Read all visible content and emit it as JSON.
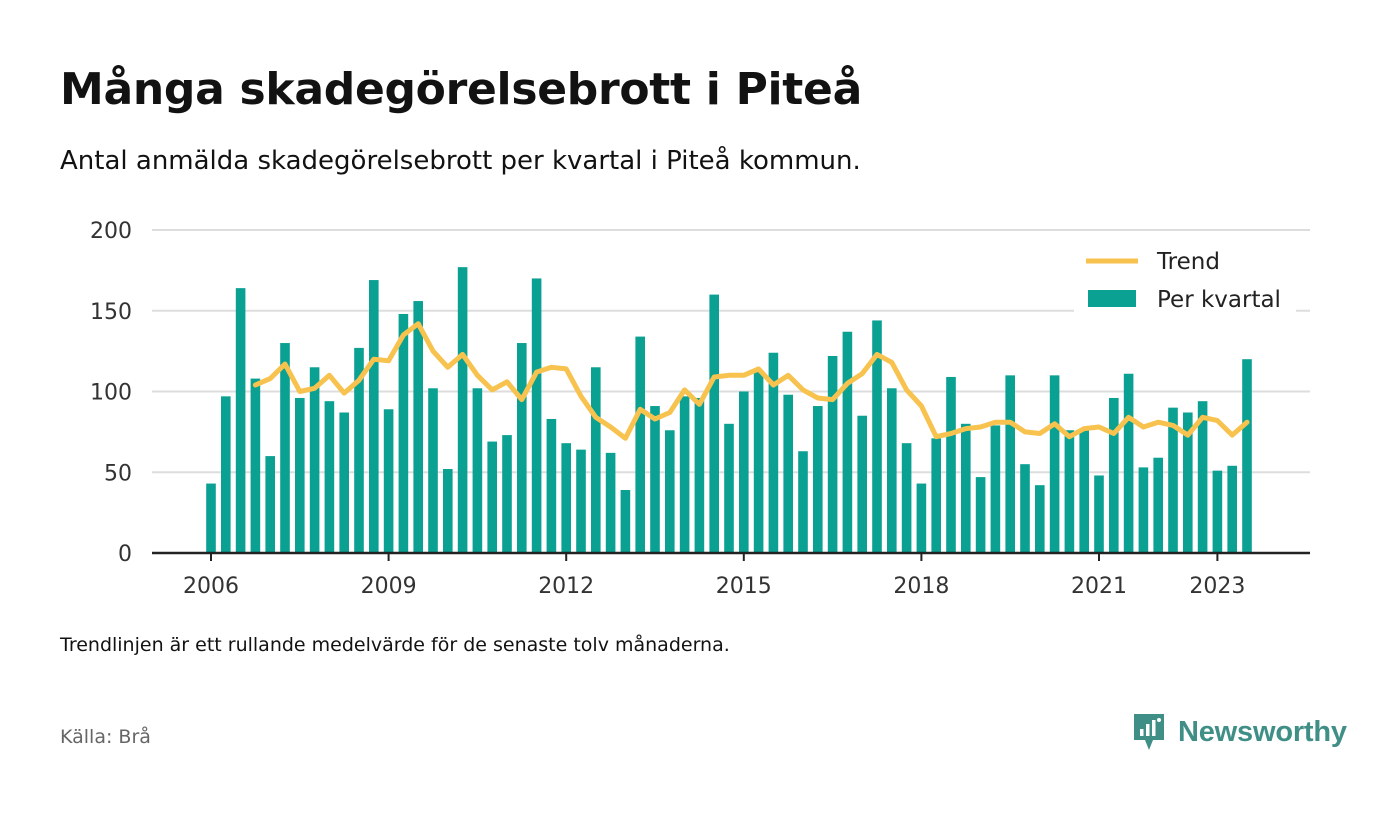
{
  "title": "Många skadegörelsebrott i Piteå",
  "subtitle": "Antal anmälda skadegörelsebrott per kvartal i Piteå kommun.",
  "note": "Trendlinjen är ett rullande medelvärde för de senaste tolv månaderna.",
  "source": "Källa: Brå",
  "brand": {
    "name": "Newsworthy",
    "icon": "newsworthy-logo-icon",
    "color": "#3f8f86"
  },
  "chart_data": {
    "type": "bar",
    "colors": {
      "bar": "#0aa092",
      "trend": "#f7c24e",
      "grid": "#dddddd",
      "axis": "#222222"
    },
    "ylim": [
      0,
      200
    ],
    "yticks": [
      0,
      50,
      100,
      150,
      200
    ],
    "xticks": [
      "2006",
      "2009",
      "2012",
      "2015",
      "2018",
      "2021",
      "2023"
    ],
    "grid": true,
    "legend": {
      "position": "top-right",
      "trend_label": "Trend",
      "bar_label": "Per kvartal"
    },
    "series": [
      {
        "name": "Per kvartal",
        "type": "bar",
        "values": [
          43,
          97,
          164,
          108,
          60,
          130,
          96,
          115,
          94,
          87,
          127,
          169,
          89,
          148,
          156,
          102,
          52,
          177,
          102,
          69,
          73,
          130,
          170,
          83,
          68,
          64,
          115,
          62,
          39,
          134,
          91,
          76,
          97,
          96,
          160,
          80,
          100,
          112,
          124,
          98,
          63,
          91,
          122,
          137,
          85,
          144,
          102,
          68,
          43,
          71,
          109,
          80,
          47,
          79,
          110,
          55,
          42,
          110,
          76,
          76,
          48,
          96,
          111,
          53,
          59,
          90,
          87,
          94,
          51,
          54,
          120
        ]
      },
      {
        "name": "Trend",
        "type": "line",
        "start_index": 3,
        "values": [
          104,
          108,
          117,
          100,
          102,
          110,
          99,
          107,
          120,
          119,
          135,
          142,
          125,
          115,
          123,
          110,
          101,
          106,
          95,
          112,
          115,
          114,
          97,
          84,
          78,
          71,
          89,
          83,
          87,
          101,
          92,
          109,
          110,
          110,
          114,
          104,
          110,
          101,
          96,
          95,
          105,
          111,
          123,
          118,
          101,
          91,
          72,
          74,
          77,
          78,
          81,
          81,
          75,
          74,
          80,
          72,
          77,
          78,
          74,
          84,
          78,
          81,
          79,
          73,
          84,
          82,
          73,
          81
        ]
      }
    ]
  }
}
